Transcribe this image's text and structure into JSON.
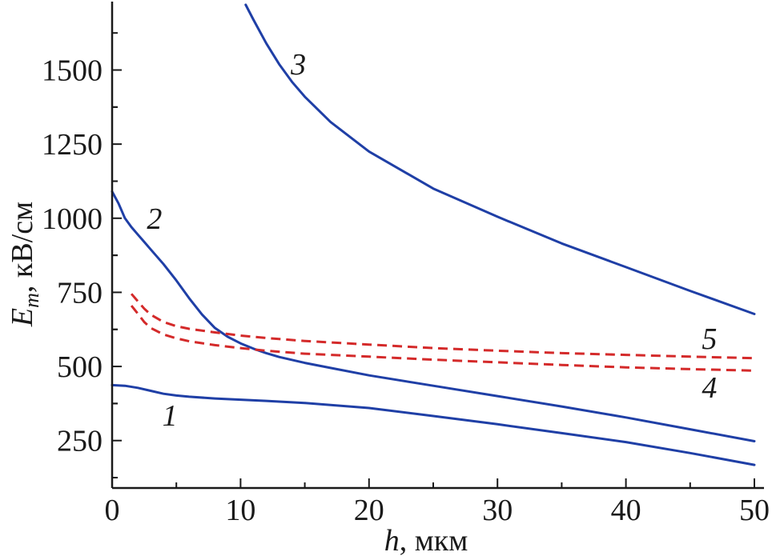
{
  "chart_data": {
    "type": "line",
    "title": "",
    "xlabel": "h, мкм",
    "ylabel": "Em, кВ/см",
    "xlabel_parts": {
      "var": "h",
      "unit": ", мкм"
    },
    "ylabel_parts": {
      "var": "E",
      "sub": "m",
      "unit": ", кВ/см"
    },
    "xlim": [
      0,
      50
    ],
    "ylim": [
      90,
      1720
    ],
    "xticks": [
      0,
      10,
      20,
      30,
      40,
      50
    ],
    "yticks": [
      250,
      500,
      750,
      1000,
      1250,
      1500
    ],
    "grid": false,
    "series": [
      {
        "name": "1",
        "color": "#1f3fa6",
        "dashed": false,
        "x": [
          0,
          1,
          2,
          3,
          4,
          5,
          6,
          8,
          10,
          12,
          15,
          20,
          25,
          30,
          35,
          40,
          45,
          50
        ],
        "y": [
          437,
          435,
          428,
          418,
          408,
          402,
          398,
          392,
          388,
          384,
          377,
          360,
          333,
          305,
          275,
          245,
          208,
          168
        ]
      },
      {
        "name": "2",
        "color": "#1f3fa6",
        "dashed": false,
        "x": [
          0,
          0.5,
          1,
          1.5,
          2,
          2.5,
          3,
          4,
          5,
          6,
          7,
          8,
          9,
          10,
          11,
          12,
          13,
          15,
          17,
          20,
          25,
          30,
          35,
          40,
          45,
          50
        ],
        "y": [
          1090,
          1050,
          1000,
          970,
          945,
          920,
          895,
          845,
          790,
          730,
          675,
          630,
          600,
          578,
          560,
          545,
          532,
          512,
          495,
          470,
          435,
          400,
          365,
          328,
          288,
          248
        ]
      },
      {
        "name": "3",
        "color": "#1f3fa6",
        "dashed": false,
        "x": [
          10.4,
          11,
          12,
          13,
          14,
          15,
          17,
          20,
          25,
          30,
          35,
          40,
          45,
          50
        ],
        "y": [
          1720,
          1670,
          1590,
          1520,
          1460,
          1410,
          1325,
          1225,
          1100,
          1005,
          915,
          835,
          755,
          677
        ]
      },
      {
        "name": "4",
        "color": "#d42a2a",
        "dashed": true,
        "x": [
          1.5,
          2,
          2.5,
          3,
          4,
          5,
          6,
          8,
          10,
          12,
          15,
          20,
          25,
          30,
          35,
          40,
          45,
          50
        ],
        "y": [
          705,
          678,
          650,
          630,
          608,
          595,
          585,
          572,
          562,
          553,
          543,
          533,
          523,
          514,
          505,
          497,
          491,
          486
        ]
      },
      {
        "name": "5",
        "color": "#d42a2a",
        "dashed": true,
        "x": [
          1.5,
          2,
          2.5,
          3,
          4,
          5,
          6,
          8,
          10,
          12,
          15,
          20,
          25,
          30,
          35,
          40,
          45,
          50
        ],
        "y": [
          745,
          720,
          695,
          675,
          650,
          636,
          627,
          615,
          604,
          596,
          586,
          574,
          562,
          553,
          545,
          539,
          533,
          528
        ]
      }
    ],
    "annotations": [
      {
        "text": "1",
        "x": 4.5,
        "y": 335
      },
      {
        "text": "2",
        "x": 3.3,
        "y": 1000
      },
      {
        "text": "3",
        "x": 14.5,
        "y": 1520
      },
      {
        "text": "4",
        "x": 46.5,
        "y": 430
      },
      {
        "text": "5",
        "x": 46.5,
        "y": 595
      }
    ]
  }
}
